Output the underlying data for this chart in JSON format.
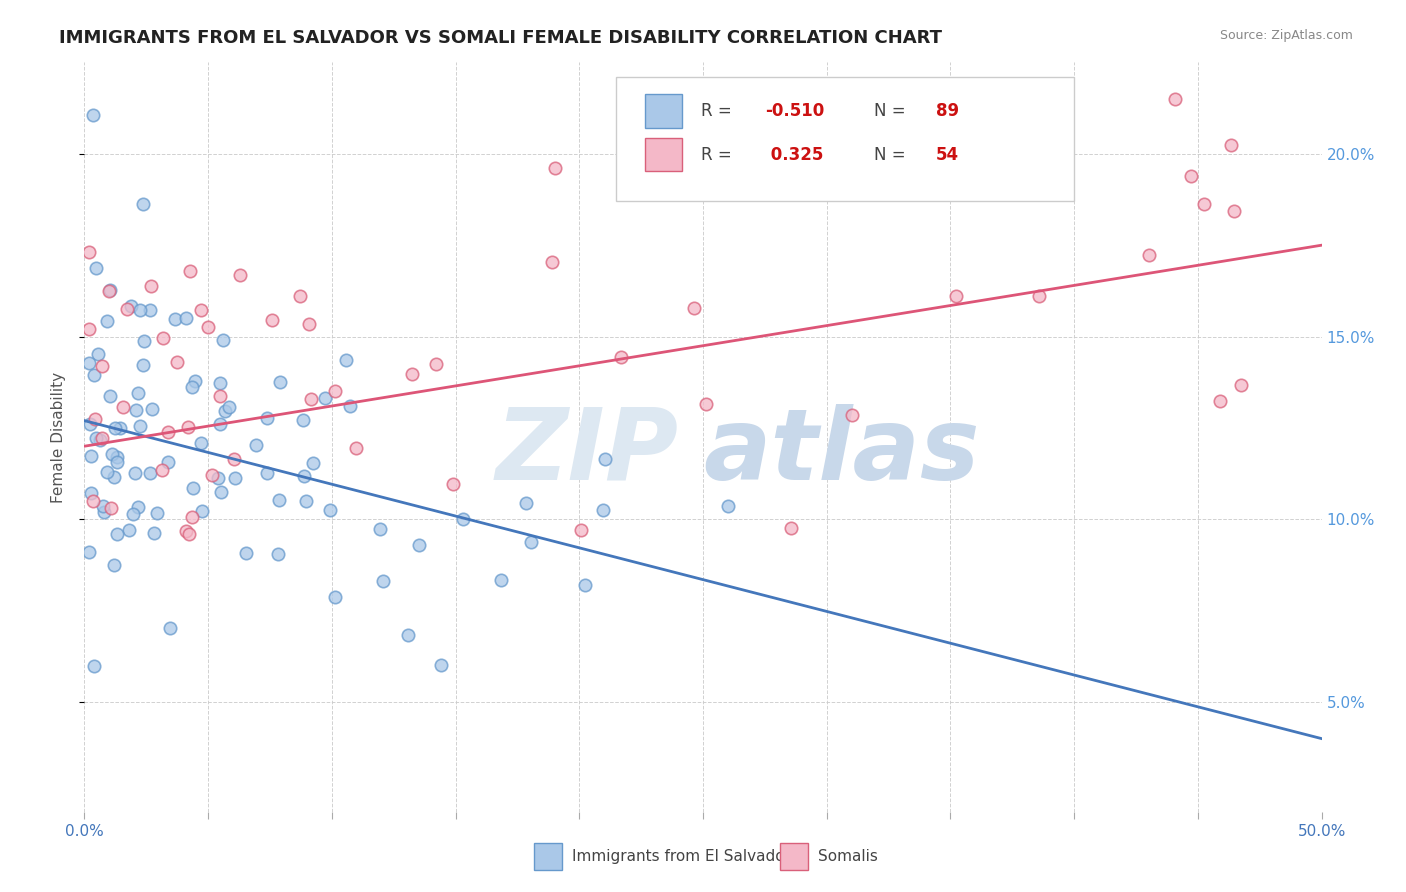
{
  "title": "IMMIGRANTS FROM EL SALVADOR VS SOMALI FEMALE DISABILITY CORRELATION CHART",
  "source": "Source: ZipAtlas.com",
  "ylabel": "Female Disability",
  "blue_R": -0.51,
  "blue_N": 89,
  "pink_R": 0.325,
  "pink_N": 54,
  "blue_face_color": "#aac8e8",
  "blue_edge_color": "#6699cc",
  "pink_face_color": "#f4b8c8",
  "pink_edge_color": "#d9607a",
  "blue_line_color": "#4477bb",
  "pink_line_color": "#dd5577",
  "legend_blue_label": "Immigrants from El Salvador",
  "legend_pink_label": "Somalis",
  "background_color": "#ffffff",
  "xlim": [
    0.0,
    0.5
  ],
  "ylim": [
    0.02,
    0.225
  ],
  "y_ticks": [
    0.05,
    0.1,
    0.15,
    0.2
  ],
  "y_tick_labels": [
    "5.0%",
    "10.0%",
    "15.0%",
    "20.0%"
  ],
  "blue_trend_y0": 0.127,
  "blue_trend_y1": 0.04,
  "pink_trend_y0": 0.12,
  "pink_trend_y1": 0.175,
  "marker_size": 80,
  "marker_lw": 1.2,
  "title_fontsize": 13,
  "source_fontsize": 9,
  "tick_fontsize": 11,
  "ylabel_fontsize": 11,
  "right_tick_color": "#5599dd"
}
